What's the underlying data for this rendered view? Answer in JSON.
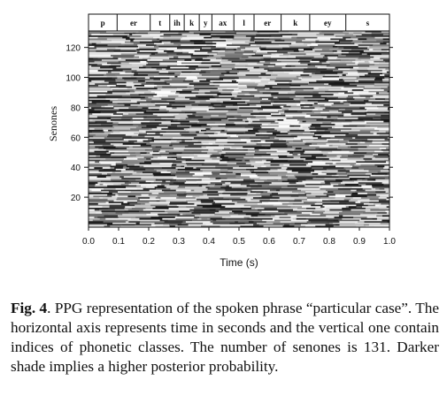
{
  "chart_data": {
    "type": "heatmap",
    "title": "",
    "xlabel": "Time (s)",
    "ylabel": "Senones",
    "xlim": [
      0.0,
      1.0
    ],
    "ylim": [
      0,
      131
    ],
    "x_ticks": [
      "0.0",
      "0.1",
      "0.2",
      "0.3",
      "0.4",
      "0.5",
      "0.6",
      "0.7",
      "0.8",
      "0.9",
      "1.0"
    ],
    "y_ticks": [
      "20",
      "40",
      "60",
      "80",
      "100",
      "120"
    ],
    "x_tick_values": [
      0.0,
      0.1,
      0.2,
      0.3,
      0.4,
      0.5,
      0.6,
      0.7,
      0.8,
      0.9,
      1.0
    ],
    "y_tick_values": [
      20,
      40,
      60,
      80,
      100,
      120
    ],
    "colormap": "grayscale, darker = higher posterior probability",
    "phone_segments": [
      {
        "label": "p",
        "start": 0.0,
        "end": 0.095
      },
      {
        "label": "er",
        "start": 0.095,
        "end": 0.205
      },
      {
        "label": "t",
        "start": 0.205,
        "end": 0.27
      },
      {
        "label": "ih",
        "start": 0.27,
        "end": 0.318
      },
      {
        "label": "k",
        "start": 0.318,
        "end": 0.368
      },
      {
        "label": "y",
        "start": 0.368,
        "end": 0.41
      },
      {
        "label": "ax",
        "start": 0.41,
        "end": 0.483
      },
      {
        "label": "l",
        "start": 0.483,
        "end": 0.55
      },
      {
        "label": "er",
        "start": 0.55,
        "end": 0.64
      },
      {
        "label": "k",
        "start": 0.64,
        "end": 0.735
      },
      {
        "label": "ey",
        "start": 0.735,
        "end": 0.855
      },
      {
        "label": "s",
        "start": 0.855,
        "end": 1.0
      }
    ]
  },
  "caption": {
    "label": "Fig. 4",
    "text": ". PPG representation of the spoken phrase “particular case”. The horizontal axis represents time in seconds and the vertical one contain indices of phonetic classes. The number of senones is 131. Darker shade implies a higher posterior probability."
  }
}
